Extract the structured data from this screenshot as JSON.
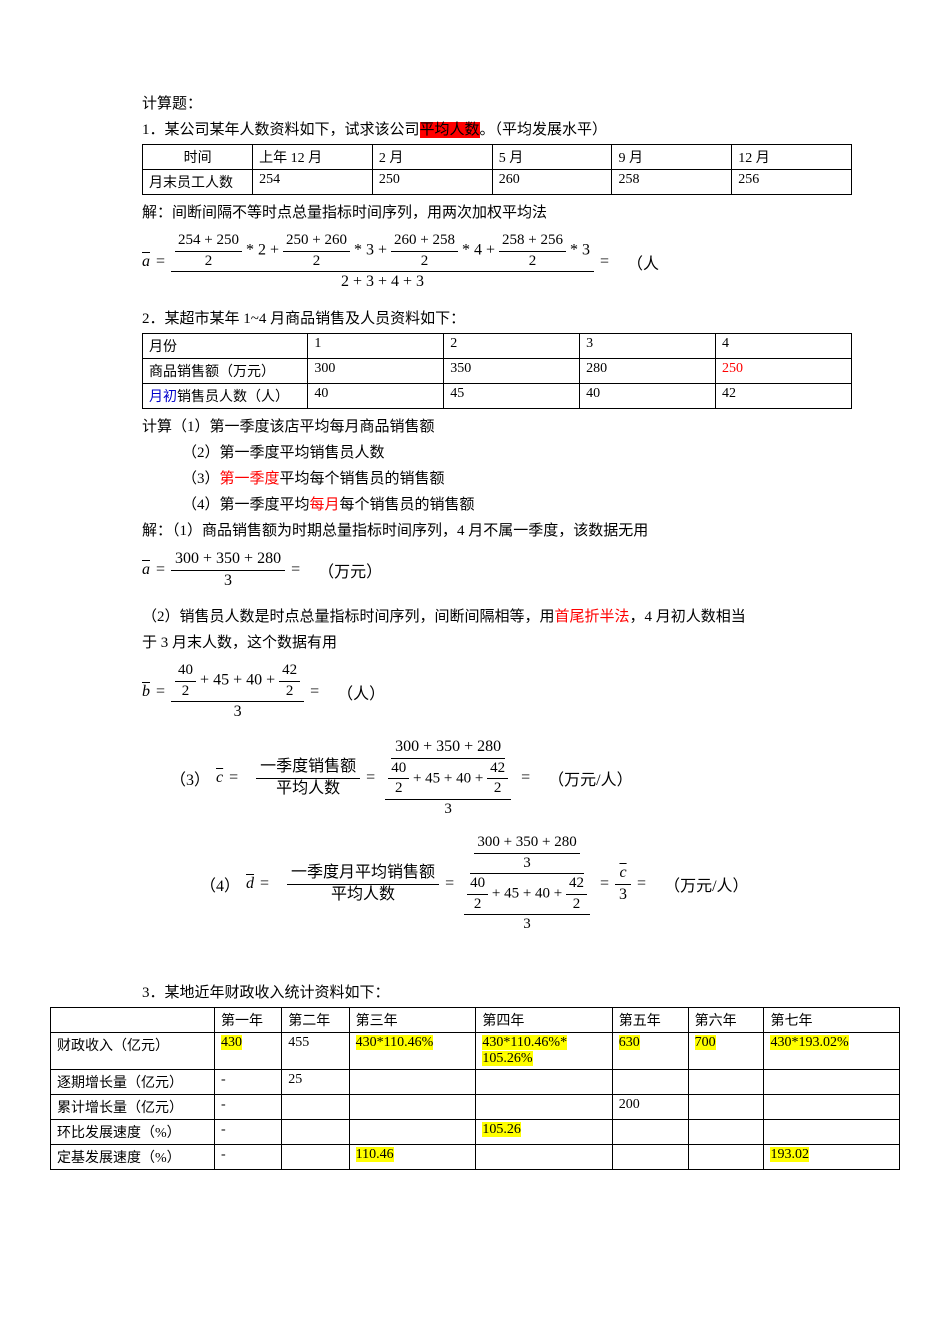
{
  "heading": "计算题：",
  "q1": {
    "prompt_a": "1．某公司某年人数资料如下，试求该公司",
    "highlight": "平均人数",
    "prompt_b": "。（平均发展水平）",
    "table": {
      "r1": [
        "时间",
        "上年 12 月",
        "2 月",
        "5 月",
        "9 月",
        "12 月"
      ],
      "r2": [
        "月末员工人数",
        "254",
        "250",
        "260",
        "258",
        "256"
      ]
    },
    "solution": "解：间断间隔不等时点总量指标时间序列，用两次加权平均法",
    "formula": {
      "var": "a",
      "t1a": "254",
      "t1b": "250",
      "w1": "2",
      "t2a": "250",
      "t2b": "260",
      "w2": "3",
      "t3a": "260",
      "t3b": "258",
      "w3": "4",
      "t4a": "258",
      "t4b": "256",
      "w4": "3",
      "den": "2 + 3 + 4 + 3",
      "unit": "（人"
    }
  },
  "q2": {
    "prompt": "2．某超市某年 1~4 月商品销售及人员资料如下：",
    "table": {
      "r1": [
        "月份",
        "1",
        "2",
        "3",
        "4"
      ],
      "r2": [
        "商品销售额（万元）",
        "300",
        "350",
        "280",
        "250"
      ],
      "r3_label_a": "月初",
      "r3_label_b": "销售员人数（人）",
      "r3": [
        "40",
        "45",
        "40",
        "42"
      ]
    },
    "calc_head": "计算（1）第一季度该店平均每月商品销售额",
    "calc2": "（2）第一季度平均销售员人数",
    "calc3_a": "（3）",
    "calc3_red": "第一季度",
    "calc3_b": "平均每个销售员的销售额",
    "calc4_a": "（4）第一季度平均",
    "calc4_red": "每月",
    "calc4_b": "每个销售员的销售额",
    "sol1": "解：（1）商品销售额为时期总量指标时间序列，4 月不属一季度，该数据无用",
    "f1": {
      "var": "a",
      "num": "300 + 350 + 280",
      "den": "3",
      "unit": "（万元）"
    },
    "sol2_a": "（2）销售员人数是时点总量指标时间序列，间断间隔相等，用",
    "sol2_red": "首尾折半法",
    "sol2_b": "，4 月初人数相当",
    "sol2_c": "于 3 月末人数，这个数据有用",
    "f2": {
      "var": "b",
      "a": "40",
      "b": "45",
      "c": "40",
      "d": "42",
      "den": "3",
      "unit": "（人）"
    },
    "f3": {
      "label": "（3）",
      "var": "c",
      "top_label": "一季度销售额",
      "bot_label": "平均人数",
      "num": "300 + 350 + 280",
      "a": "40",
      "b": "45",
      "c": "40",
      "d": "42",
      "den": "3",
      "unit": "（万元/人）"
    },
    "f4": {
      "label": "（4）",
      "var": "d",
      "top_label": "一季度月平均销售额",
      "bot_label": "平均人数",
      "num": "300 + 350 + 280",
      "numden": "3",
      "a": "40",
      "b": "45",
      "c": "40",
      "d": "42",
      "den": "3",
      "cvar": "c",
      "unit": "（万元/人）"
    }
  },
  "q3": {
    "prompt": "3．某地近年财政收入统计资料如下：",
    "headers": [
      "",
      "第一年",
      "第二年",
      "第三年",
      "第四年",
      "第五年",
      "第六年",
      "第七年"
    ],
    "rows": [
      {
        "label": "财政收入（亿元）",
        "cells": [
          {
            "v": "430",
            "hl": true
          },
          {
            "v": "455"
          },
          {
            "v": "430*110.46%",
            "hl": true
          },
          {
            "v": "430*110.46%* 105.26%",
            "hl": true
          },
          {
            "v": "630",
            "hl": true
          },
          {
            "v": "700",
            "hl": true
          },
          {
            "v": "430*193.02%",
            "hl": true
          }
        ]
      },
      {
        "label": "逐期增长量（亿元）",
        "cells": [
          {
            "v": "-"
          },
          {
            "v": "25"
          },
          {
            "v": ""
          },
          {
            "v": ""
          },
          {
            "v": ""
          },
          {
            "v": ""
          },
          {
            "v": ""
          }
        ]
      },
      {
        "label": "累计增长量（亿元）",
        "cells": [
          {
            "v": "-"
          },
          {
            "v": ""
          },
          {
            "v": ""
          },
          {
            "v": ""
          },
          {
            "v": "200"
          },
          {
            "v": ""
          },
          {
            "v": ""
          }
        ]
      },
      {
        "label": "环比发展速度（%）",
        "cells": [
          {
            "v": "-"
          },
          {
            "v": ""
          },
          {
            "v": ""
          },
          {
            "v": "105.26",
            "hl": true
          },
          {
            "v": ""
          },
          {
            "v": ""
          },
          {
            "v": ""
          }
        ]
      },
      {
        "label": "定基发展速度（%）",
        "cells": [
          {
            "v": "-"
          },
          {
            "v": ""
          },
          {
            "v": "110.46",
            "hl": true
          },
          {
            "v": ""
          },
          {
            "v": ""
          },
          {
            "v": ""
          },
          {
            "v": "193.02",
            "hl": true
          }
        ]
      }
    ],
    "col_widths": [
      "170",
      "60",
      "60",
      "120",
      "130",
      "70",
      "70",
      "130"
    ]
  }
}
